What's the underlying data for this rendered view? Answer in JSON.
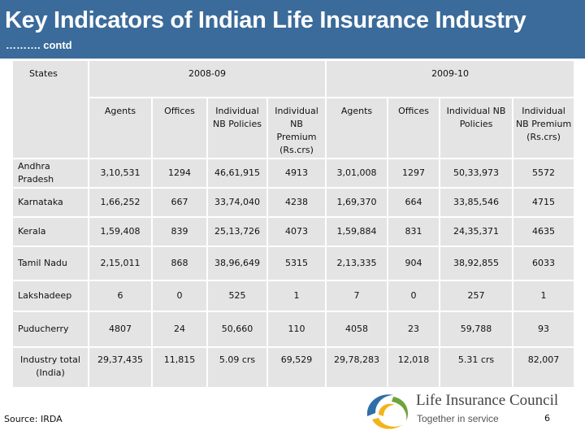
{
  "header": {
    "title": "Key Indicators of Indian Life Insurance Industry",
    "subtitle": "………. contd",
    "bg_color": "#3a6b9a"
  },
  "table": {
    "states_label": "States",
    "periods": [
      "2008-09",
      "2009-10"
    ],
    "columns": [
      "Agents",
      "Offices",
      "Individual NB Policies",
      "Individual NB Premium (Rs.crs)",
      "Agents",
      "Offices",
      "Individual NB Policies",
      "Individual NB Premium (Rs.crs)"
    ],
    "rows": [
      {
        "state": "Andhra Pradesh",
        "values": [
          "3,10,531",
          "1294",
          "46,61,915",
          "4913",
          "3,01,008",
          "1297",
          "50,33,973",
          "5572"
        ]
      },
      {
        "state": "Karnataka",
        "values": [
          "1,66,252",
          "667",
          "33,74,040",
          "4238",
          "1,69,370",
          "664",
          "33,85,546",
          "4715"
        ]
      },
      {
        "state": "Kerala",
        "values": [
          "1,59,408",
          "839",
          "25,13,726",
          "4073",
          "1,59,884",
          "831",
          "24,35,371",
          "4635"
        ]
      },
      {
        "state": "Tamil Nadu",
        "values": [
          "2,15,011",
          "868",
          "38,96,649",
          "5315",
          "2,13,335",
          "904",
          "38,92,855",
          "6033"
        ]
      },
      {
        "state": "Lakshadeep",
        "values": [
          "6",
          "0",
          "525",
          "1",
          "7",
          "0",
          "257",
          "1"
        ]
      },
      {
        "state": "Puducherry",
        "values": [
          "4807",
          "24",
          "50,660",
          "110",
          "4058",
          "23",
          "59,788",
          "93"
        ]
      },
      {
        "state": "Industry total (India)",
        "values": [
          "29,37,435",
          "11,815",
          "5.09 crs",
          "69,529",
          "29,78,283",
          "12,018",
          "5.31 crs",
          "82,007"
        ]
      }
    ],
    "cell_color": "#e4e4e4"
  },
  "footer": {
    "source": "Source: IRDA",
    "logo_name": "Life Insurance Council",
    "logo_tagline": "Together in service",
    "page_number": "6"
  }
}
